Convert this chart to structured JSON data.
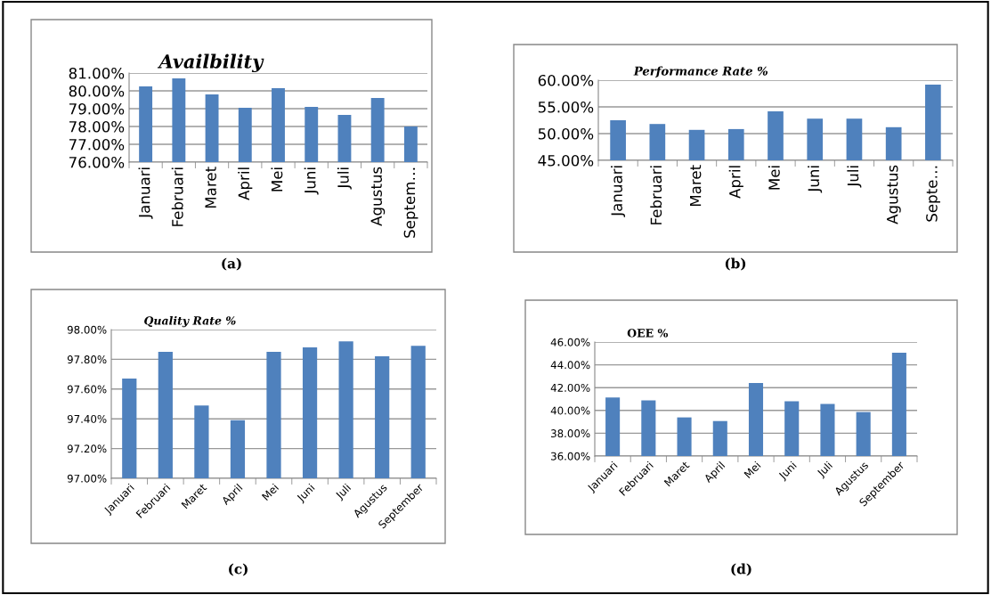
{
  "chart_data": [
    {
      "type": "bar",
      "title": "Availbility",
      "categories": [
        "Januari",
        "Februari",
        "Maret",
        "April",
        "Mei",
        "Juni",
        "Juli",
        "Agustus",
        "Septem…"
      ],
      "values": [
        80.25,
        80.7,
        79.8,
        79.05,
        80.15,
        79.1,
        78.65,
        79.6,
        78.0
      ],
      "color": "#4f81bd",
      "ylim": [
        76,
        81
      ],
      "yticks": [
        {
          "value": 76,
          "label": "76.00%"
        },
        {
          "value": 77,
          "label": "77.00%"
        },
        {
          "value": 78,
          "label": "78.00%"
        },
        {
          "value": 79,
          "label": "79.00%"
        },
        {
          "value": 80,
          "label": "80.00%"
        },
        {
          "value": 81,
          "label": "81.00%"
        }
      ],
      "grid": "y",
      "annotations": [
        "(a)"
      ]
    },
    {
      "type": "bar",
      "title": "Performance Rate %",
      "categories": [
        "Januari",
        "Februari",
        "Maret",
        "April",
        "Mei",
        "Juni",
        "Juli",
        "Agustus",
        "Septe…"
      ],
      "values": [
        52.5,
        51.8,
        50.7,
        50.85,
        54.15,
        52.8,
        52.8,
        51.2,
        59.15
      ],
      "color": "#4f81bd",
      "ylim": [
        45,
        60
      ],
      "yticks": [
        {
          "value": 45,
          "label": "45.00%"
        },
        {
          "value": 50,
          "label": "50.00%"
        },
        {
          "value": 55,
          "label": "55.00%"
        },
        {
          "value": 60,
          "label": "60.00%"
        }
      ],
      "grid": "y",
      "annotations": [
        "(b)"
      ]
    },
    {
      "type": "bar",
      "title": "Quality Rate %",
      "categories": [
        "Januari",
        "Februari",
        "Maret",
        "April",
        "Mei",
        "Juni",
        "Juli",
        "Agustus",
        "September"
      ],
      "values": [
        97.67,
        97.85,
        97.49,
        97.39,
        97.85,
        97.88,
        97.92,
        97.82,
        97.89
      ],
      "color": "#4f81bd",
      "ylim": [
        97,
        98
      ],
      "yticks": [
        {
          "value": 97,
          "label": "97.00%"
        },
        {
          "value": 97.2,
          "label": "97.20%"
        },
        {
          "value": 97.4,
          "label": "97.40%"
        },
        {
          "value": 97.6,
          "label": "97.60%"
        },
        {
          "value": 97.8,
          "label": "97.80%"
        },
        {
          "value": 98,
          "label": "98.00%"
        }
      ],
      "grid": "y",
      "annotations": [
        "(c)"
      ]
    },
    {
      "type": "bar",
      "title": "OEE %",
      "categories": [
        "Januari",
        "Februari",
        "Maret",
        "April",
        "Mei",
        "Juni",
        "Juli",
        "Agustus",
        "September"
      ],
      "values": [
        41.13,
        40.89,
        39.39,
        39.07,
        42.4,
        40.8,
        40.58,
        39.86,
        45.07
      ],
      "color": "#4f81bd",
      "ylim": [
        36,
        46
      ],
      "yticks": [
        {
          "value": 36,
          "label": "36.00%"
        },
        {
          "value": 38,
          "label": "38.00%"
        },
        {
          "value": 40,
          "label": "40.00%"
        },
        {
          "value": 42,
          "label": "42.00%"
        },
        {
          "value": 44,
          "label": "44.00%"
        },
        {
          "value": 46,
          "label": "46.00%"
        }
      ],
      "grid": "y",
      "annotations": [
        "(d)"
      ]
    }
  ]
}
